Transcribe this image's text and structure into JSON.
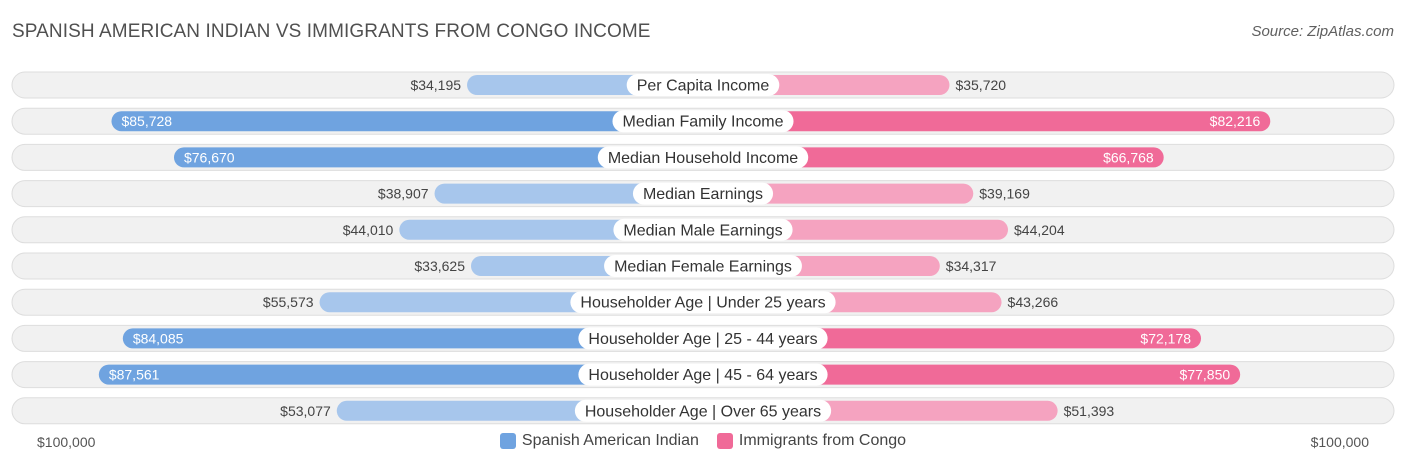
{
  "header": {
    "title": "SPANISH AMERICAN INDIAN VS IMMIGRANTS FROM CONGO INCOME",
    "source": "Source: ZipAtlas.com"
  },
  "axis": {
    "left_label": "$100,000",
    "right_label": "$100,000"
  },
  "legend": [
    {
      "name": "Spanish American Indian",
      "color": "#6fa3e0"
    },
    {
      "name": "Immigrants from Congo",
      "color": "#f06a98"
    }
  ],
  "chart_data": {
    "type": "bar",
    "orientation": "horizontal-diverging",
    "xlim": [
      0,
      100000
    ],
    "categories": [
      "Per Capita Income",
      "Median Family Income",
      "Median Household Income",
      "Median Earnings",
      "Median Male Earnings",
      "Median Female Earnings",
      "Householder Age | Under 25 years",
      "Householder Age | 25 - 44 years",
      "Householder Age | 45 - 64 years",
      "Householder Age | Over 65 years"
    ],
    "series": [
      {
        "name": "Spanish American Indian",
        "side": "left",
        "values": [
          34195,
          85728,
          76670,
          38907,
          44010,
          33625,
          55573,
          84085,
          87561,
          53077
        ],
        "labels": [
          "$34,195",
          "$85,728",
          "$76,670",
          "$38,907",
          "$44,010",
          "$33,625",
          "$55,573",
          "$84,085",
          "$87,561",
          "$53,077"
        ]
      },
      {
        "name": "Immigrants from Congo",
        "side": "right",
        "values": [
          35720,
          82216,
          66768,
          39169,
          44204,
          34317,
          43266,
          72178,
          77850,
          51393
        ],
        "labels": [
          "$35,720",
          "$82,216",
          "$66,768",
          "$39,169",
          "$44,204",
          "$34,317",
          "$43,266",
          "$72,178",
          "$77,850",
          "$51,393"
        ]
      }
    ],
    "colors": {
      "left_strong": "#6fa3e0",
      "left_light": "#a7c6ec",
      "right_strong": "#f06a98",
      "right_light": "#f5a3c0"
    },
    "legend_position": "bottom-center"
  }
}
